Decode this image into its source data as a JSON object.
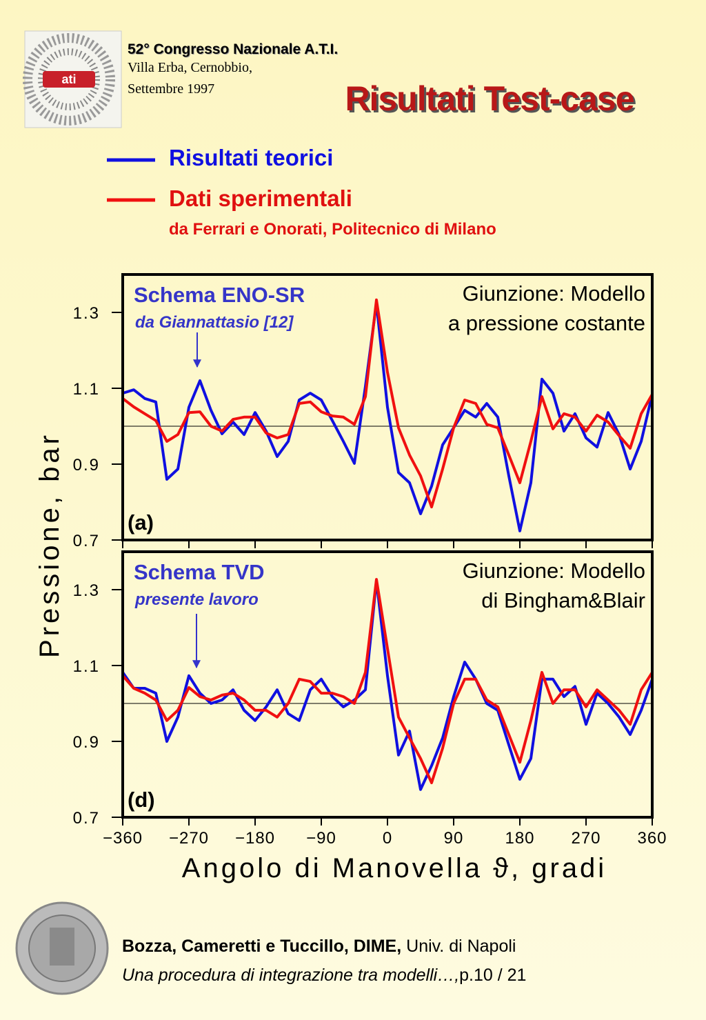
{
  "header": {
    "conference": "52° Congresso Nazionale A.T.I.",
    "venue": "Villa Erba, Cernobbio,",
    "date": "Settembre 1997",
    "title": "Risultati Test-case"
  },
  "legend_note": "da Ferrari e Onorati, Politecnico di Milano",
  "ylabel": "Pressione, bar",
  "chart_data": [
    {
      "type": "line",
      "scheme": "Schema ENO-SR",
      "scheme_note": "da Giannattasio [12]",
      "junction": [
        "Giunzione: Modello",
        "a pressione costante"
      ],
      "panel_label": "(a)",
      "xlim": [
        -360,
        360
      ],
      "ylim": [
        0.7,
        1.4
      ],
      "xticks": [
        -360,
        -270,
        -180,
        -90,
        0,
        90,
        180,
        270,
        360
      ],
      "yticks": [
        0.7,
        0.9,
        1.1,
        1.3
      ],
      "hline": 1,
      "x": [
        -360,
        -345,
        -330,
        -315,
        -300,
        -285,
        -270,
        -255,
        -240,
        -225,
        -210,
        -195,
        -180,
        -165,
        -150,
        -135,
        -120,
        -105,
        -90,
        -75,
        -60,
        -45,
        -30,
        -15,
        0,
        15,
        30,
        45,
        60,
        75,
        90,
        105,
        120,
        135,
        150,
        165,
        180,
        195,
        210,
        225,
        240,
        255,
        270,
        285,
        300,
        315,
        330,
        345,
        360
      ],
      "series": [
        {
          "name": "Risultati teorici",
          "color": "#1010e0",
          "values": [
            1.087,
            1.096,
            1.073,
            1.064,
            0.86,
            0.887,
            1.05,
            1.12,
            1.042,
            0.98,
            1.011,
            0.978,
            1.036,
            0.987,
            0.92,
            0.96,
            1.069,
            1.087,
            1.069,
            1.015,
            0.96,
            0.902,
            1.105,
            1.324,
            1.05,
            0.878,
            0.851,
            0.769,
            0.842,
            0.951,
            0.996,
            1.042,
            1.024,
            1.06,
            1.024,
            0.869,
            0.724,
            0.851,
            1.124,
            1.087,
            0.987,
            1.033,
            0.969,
            0.945,
            1.036,
            0.978,
            0.887,
            0.96,
            1.084
          ]
        },
        {
          "name": "Dati sperimentali",
          "color": "#f01010",
          "values": [
            1.073,
            1.051,
            1.033,
            1.015,
            0.96,
            0.978,
            1.036,
            1.038,
            1.0,
            0.987,
            1.018,
            1.024,
            1.024,
            0.982,
            0.969,
            0.978,
            1.06,
            1.064,
            1.038,
            1.027,
            1.024,
            1.005,
            1.078,
            1.333,
            1.142,
            0.996,
            0.924,
            0.869,
            0.787,
            0.887,
            0.996,
            1.069,
            1.06,
            1.005,
            0.996,
            0.924,
            0.851,
            0.96,
            1.078,
            0.993,
            1.033,
            1.024,
            0.987,
            1.029,
            1.011,
            0.975,
            0.942,
            1.033,
            1.084
          ]
        }
      ]
    },
    {
      "type": "line",
      "scheme": "Schema TVD",
      "scheme_note": "presente lavoro",
      "junction": [
        "Giunzione: Modello",
        "di Bingham&Blair"
      ],
      "panel_label": "(d)",
      "xlabel": "Angolo di Manovella ϑ, gradi",
      "xlim": [
        -360,
        360
      ],
      "ylim": [
        0.7,
        1.4
      ],
      "xticks": [
        {
          "value": -360,
          "label": "−360"
        },
        {
          "value": -270,
          "label": "−270"
        },
        {
          "value": -180,
          "label": "−180"
        },
        {
          "value": -90,
          "label": "−90"
        },
        0,
        90,
        180,
        270,
        360
      ],
      "yticks": [
        0.7,
        0.9,
        1.1,
        1.3
      ],
      "hline": 1,
      "x": [
        -360,
        -345,
        -330,
        -315,
        -300,
        -285,
        -270,
        -255,
        -240,
        -225,
        -210,
        -195,
        -180,
        -165,
        -150,
        -135,
        -120,
        -105,
        -90,
        -75,
        -60,
        -45,
        -30,
        -15,
        0,
        15,
        30,
        45,
        60,
        75,
        90,
        105,
        120,
        135,
        150,
        165,
        180,
        195,
        210,
        225,
        240,
        255,
        270,
        285,
        300,
        315,
        330,
        345,
        360
      ],
      "series": [
        {
          "name": "Risultati teorici",
          "color": "#1010e0",
          "values": [
            1.082,
            1.04,
            1.04,
            1.027,
            0.9,
            0.964,
            1.073,
            1.027,
            1.0,
            1.009,
            1.036,
            0.982,
            0.955,
            0.991,
            1.036,
            0.973,
            0.955,
            1.036,
            1.064,
            1.018,
            0.991,
            1.009,
            1.036,
            1.324,
            1.073,
            0.864,
            0.927,
            0.773,
            0.836,
            0.909,
            1.018,
            1.109,
            1.064,
            1.0,
            0.982,
            0.891,
            0.8,
            0.855,
            1.064,
            1.064,
            1.018,
            1.045,
            0.945,
            1.027,
            1.0,
            0.964,
            0.918,
            0.982,
            1.064
          ]
        },
        {
          "name": "Dati sperimentali",
          "color": "#f01010",
          "values": [
            1.073,
            1.04,
            1.027,
            1.009,
            0.955,
            0.982,
            1.042,
            1.018,
            1.009,
            1.022,
            1.027,
            1.009,
            0.982,
            0.982,
            0.964,
            1.0,
            1.064,
            1.058,
            1.027,
            1.027,
            1.018,
            1.0,
            1.082,
            1.327,
            1.145,
            0.964,
            0.909,
            0.855,
            0.791,
            0.882,
            1.0,
            1.064,
            1.064,
            1.009,
            0.991,
            0.918,
            0.845,
            0.955,
            1.082,
            1.0,
            1.036,
            1.036,
            0.991,
            1.036,
            1.009,
            0.982,
            0.945,
            1.036,
            1.082
          ]
        }
      ]
    }
  ],
  "footer": {
    "authors": "Bozza, Cameretti e Tuccillo, DIME,",
    "affiliation": "Univ. di Napoli",
    "work": "Una procedura di integrazione tra modelli…,",
    "page": "p.10 / 21"
  }
}
